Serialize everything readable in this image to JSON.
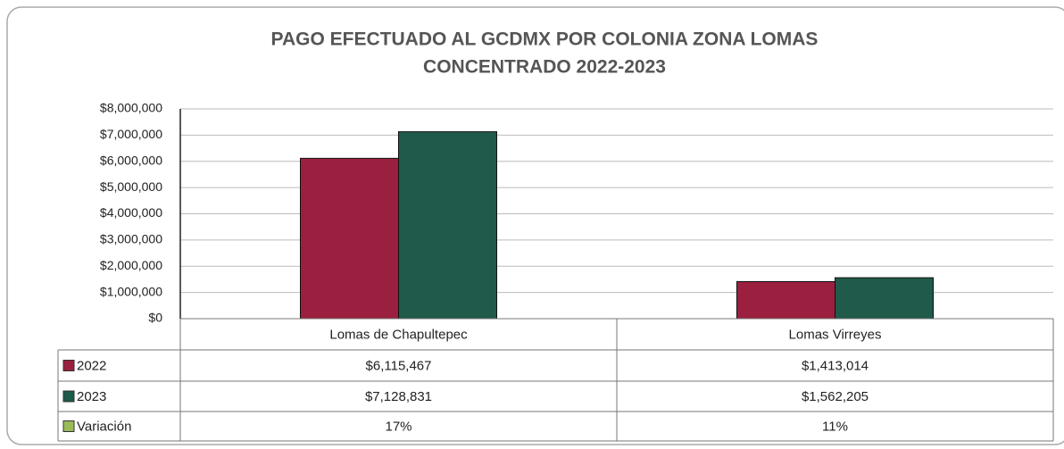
{
  "chart_data": {
    "type": "bar",
    "title": "PAGO EFECTUADO AL GCDMX POR COLONIA ZONA LOMAS",
    "subtitle": "CONCENTRADO 2022-2023",
    "categories": [
      "Lomas de Chapultepec",
      "Lomas Virreyes"
    ],
    "series": [
      {
        "name": "2022",
        "color": "#9b2040",
        "values": [
          6115467,
          1413014
        ],
        "value_labels": [
          "$6,115,467",
          "$1,413,014"
        ]
      },
      {
        "name": "2023",
        "color": "#1f5a4a",
        "values": [
          7128831,
          1562205
        ],
        "value_labels": [
          "$7,128,831",
          "$1,562,205"
        ]
      }
    ],
    "variation": {
      "name": "Variación",
      "color": "#9bbb59",
      "values": [
        17,
        11
      ],
      "value_labels": [
        "17%",
        "11%"
      ]
    },
    "ylim": [
      0,
      8000000
    ],
    "yticks": [
      {
        "value": 0,
        "label": "$0"
      },
      {
        "value": 1000000,
        "label": "$1,000,000"
      },
      {
        "value": 2000000,
        "label": "$2,000,000"
      },
      {
        "value": 3000000,
        "label": "$3,000,000"
      },
      {
        "value": 4000000,
        "label": "$4,000,000"
      },
      {
        "value": 5000000,
        "label": "$5,000,000"
      },
      {
        "value": 6000000,
        "label": "$6,000,000"
      },
      {
        "value": 7000000,
        "label": "$7,000,000"
      },
      {
        "value": 8000000,
        "label": "$8,000,000"
      }
    ],
    "grid": true
  }
}
